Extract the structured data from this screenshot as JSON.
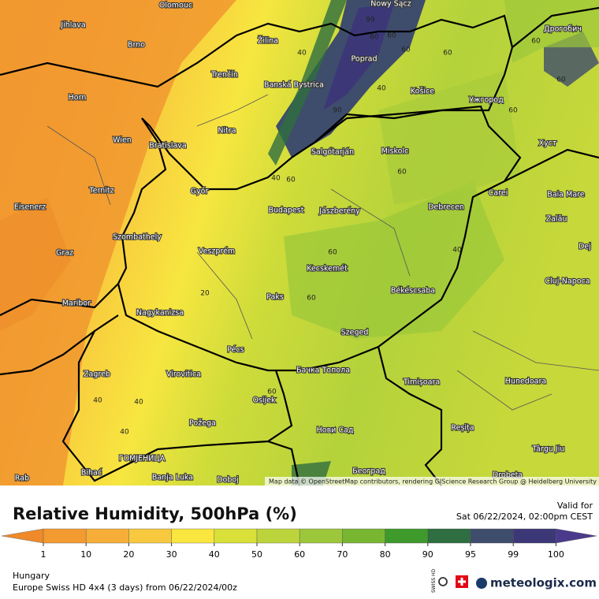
{
  "map": {
    "cities": [
      "Olomouc",
      "Jihlava",
      "Brno",
      "Žilina",
      "Nowy Sącz",
      "Poprad",
      "Дрогобич",
      "Trenčín",
      "Banská Bystrica",
      "Horn",
      "Košice",
      "Ужгород",
      "Nitra",
      "Wien",
      "Bratislava",
      "Хуст",
      "Salgótarján",
      "Miskolc",
      "Ternitz",
      "Győr",
      "Carei",
      "Baia Mare",
      "Eisenerz",
      "Budapest",
      "Jászberény",
      "Debrecen",
      "Szombathely",
      "Zalău",
      "Graz",
      "Veszprém",
      "Dej",
      "Kecskemét",
      "Cluj-Napoca",
      "Maribor",
      "Paks",
      "Békéscsaba",
      "Nagykanizsa",
      "Szeged",
      "Pécs",
      "Zagreb",
      "Virovitica",
      "Бачка Топола",
      "Timișoara",
      "Hunedoara",
      "Osijek",
      "Požega",
      "Нови Сад",
      "Reșița",
      "Târgu Jiu",
      "Bihać",
      "ГОМЈЕНИЦА",
      "Banja Luka",
      "Doboj",
      "Београд",
      "Drobeta",
      "Rab"
    ],
    "contour_labels": [
      40,
      60,
      60,
      60,
      60,
      99,
      90,
      40,
      60,
      60,
      60,
      60,
      40,
      60,
      60,
      60,
      40,
      20,
      40,
      40,
      60,
      40
    ],
    "attribution": "Map data © OpenStreetMap contributors, rendering GIScience Research Group @ Heidelberg University"
  },
  "header": {
    "title": "Relative Humidity, 500hPa (%)",
    "valid_label": "Valid for",
    "valid_time": "Sat 06/22/2024, 02:00pm CEST"
  },
  "legend": {
    "ticks": [
      1,
      10,
      20,
      30,
      40,
      50,
      60,
      70,
      80,
      90,
      95,
      99,
      100
    ],
    "colors": [
      "#ef8a2a",
      "#f39a30",
      "#f6ae38",
      "#f8c93e",
      "#f9e63f",
      "#d9e03a",
      "#bcd43b",
      "#9dc73a",
      "#78b632",
      "#3d9a2b",
      "#2f6e40",
      "#3f4d6c",
      "#3c3878",
      "#4b3a8c"
    ]
  },
  "footer": {
    "region": "Hungary",
    "model": "Europe Swiss HD 4x4 (3 days) from 06/22/2024/00z",
    "brand": "meteologix.com",
    "badge": "SWISS HD"
  }
}
